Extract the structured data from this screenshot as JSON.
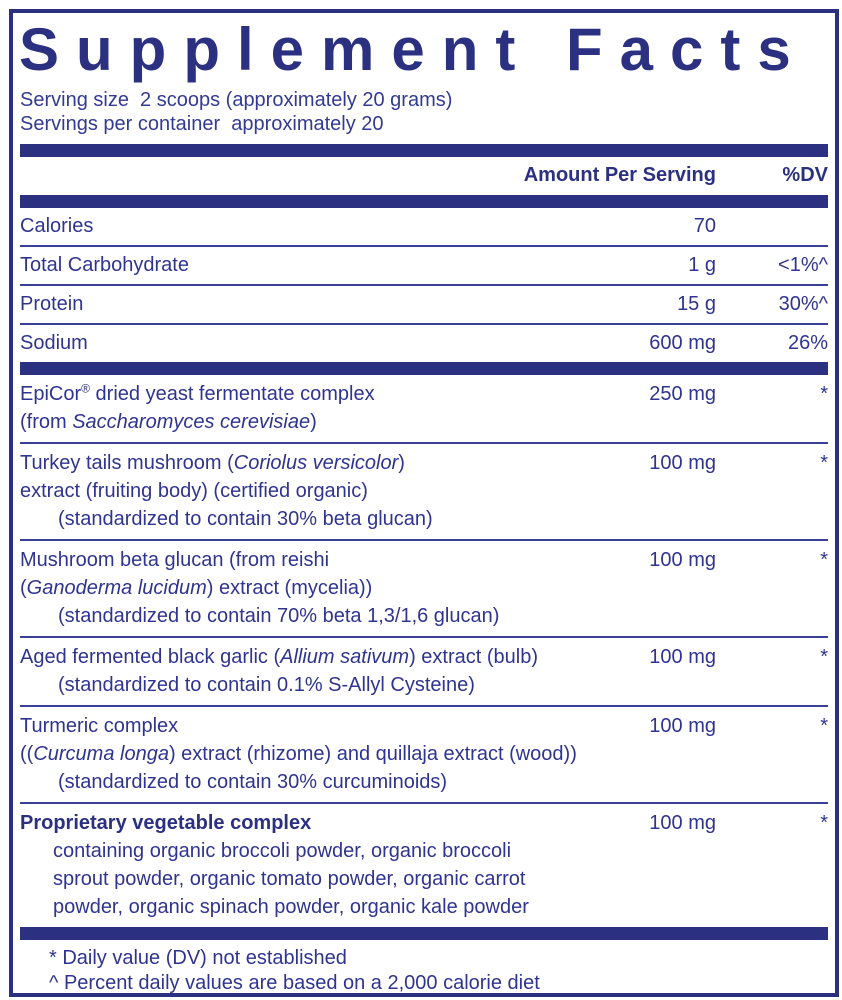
{
  "accent_color": "#2B3180",
  "title": "Supplement Facts",
  "serving": {
    "serving_size": "Serving size  2 scoops (approximately 20 grams)",
    "servings_per_container": "Servings per container  approximately 20"
  },
  "table": {
    "header": {
      "amount": "Amount Per Serving",
      "dv": "%DV"
    },
    "nutrients": [
      {
        "name": "Calories",
        "amount": "70",
        "dv": ""
      },
      {
        "name": "Total Carbohydrate",
        "amount": "1 g",
        "dv": "<1%^"
      },
      {
        "name": "Protein",
        "amount": "15 g",
        "dv": "30%^"
      },
      {
        "name": "Sodium",
        "amount": "600 mg",
        "dv": "26%"
      }
    ],
    "ingredients": [
      {
        "amount": "250 mg",
        "dv": "*",
        "lines": [
          [
            {
              "t": "EpiCor"
            },
            {
              "t": "®",
              "sup": true
            },
            {
              "t": " dried yeast fermentate complex"
            }
          ],
          [
            {
              "t": "(from "
            },
            {
              "t": "Saccharomyces cerevisiae",
              "i": true
            },
            {
              "t": ")"
            }
          ]
        ]
      },
      {
        "amount": "100 mg",
        "dv": "*",
        "lines": [
          [
            {
              "t": "Turkey tails mushroom ("
            },
            {
              "t": "Coriolus versicolor",
              "i": true
            },
            {
              "t": ")"
            }
          ],
          [
            {
              "t": "extract (fruiting body) (certified organic)"
            }
          ],
          [
            {
              "t": "(standardized to contain 30% beta glucan)"
            }
          ]
        ]
      },
      {
        "amount": "100 mg",
        "dv": "*",
        "lines": [
          [
            {
              "t": "Mushroom beta glucan (from reishi"
            }
          ],
          [
            {
              "t": "("
            },
            {
              "t": "Ganoderma lucidum",
              "i": true
            },
            {
              "t": ") extract (mycelia))"
            }
          ],
          [
            {
              "t": "(standardized to contain 70% beta 1,3/1,6 glucan)"
            }
          ]
        ]
      },
      {
        "amount": "100 mg",
        "dv": "*",
        "lines": [
          [
            {
              "t": "Aged fermented black garlic ("
            },
            {
              "t": "Allium sativum",
              "i": true
            },
            {
              "t": ") extract (bulb)"
            }
          ],
          [
            {
              "t": "(standardized to contain 0.1% S-Allyl Cysteine)"
            }
          ]
        ]
      },
      {
        "amount": "100 mg",
        "dv": "*",
        "lines": [
          [
            {
              "t": "Turmeric complex"
            }
          ],
          [
            {
              "t": "(("
            },
            {
              "t": "Curcuma longa",
              "i": true
            },
            {
              "t": ") extract (rhizome) and quillaja extract (wood))"
            }
          ],
          [
            {
              "t": "(standardized to contain 30% curcuminoids)"
            }
          ]
        ]
      },
      {
        "amount": "100 mg",
        "dv": "*",
        "lines": [
          [
            {
              "t": "Proprietary vegetable complex"
            }
          ],
          [
            {
              "t": "containing organic broccoli powder, organic broccoli"
            }
          ],
          [
            {
              "t": "sprout powder, organic tomato powder, organic carrot"
            }
          ],
          [
            {
              "t": "powder, organic spinach powder, organic kale powder"
            }
          ]
        ]
      }
    ]
  },
  "footnotes": [
    "* Daily value (DV) not established",
    "^ Percent daily values are based on a 2,000 calorie diet"
  ]
}
